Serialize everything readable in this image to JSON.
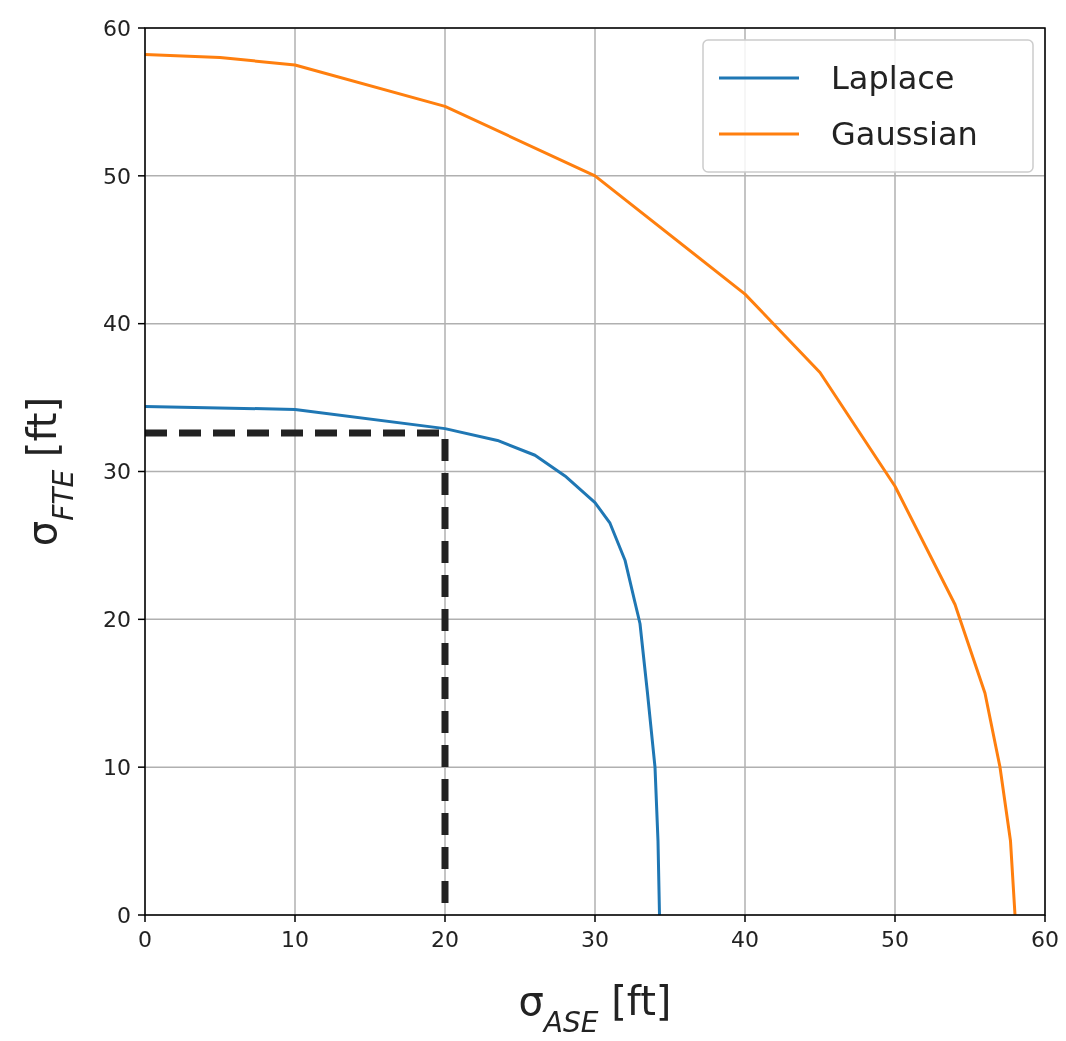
{
  "chart_data": {
    "type": "line",
    "xlabel": "σ$_{ASE}$ [ft]",
    "ylabel": "σ$_{FTE}$ [ft]",
    "xlim": [
      0,
      60
    ],
    "ylim": [
      0,
      60
    ],
    "xticks": [
      0,
      10,
      20,
      30,
      40,
      50,
      60
    ],
    "yticks": [
      0,
      10,
      20,
      30,
      40,
      50,
      60
    ],
    "grid": true,
    "legend": "top right",
    "line_style": "solid",
    "marker": "none",
    "series": [
      {
        "name": "Laplace",
        "color": "#1f77b4",
        "x": [
          0,
          10,
          20,
          23.5,
          26,
          28,
          30,
          31,
          32,
          33,
          33.5,
          34,
          34.2,
          34.3
        ],
        "values": [
          34.4,
          34.2,
          32.9,
          32.1,
          31.1,
          29.7,
          27.9,
          26.5,
          24,
          19.7,
          15,
          10,
          5,
          0
        ]
      },
      {
        "name": "Gaussian",
        "color": "#ff7f0e",
        "x": [
          0,
          5,
          10,
          20,
          30,
          40,
          45,
          50,
          54,
          56,
          57,
          57.7,
          58
        ],
        "values": [
          58.2,
          58,
          57.5,
          54.7,
          50,
          42,
          36.7,
          29,
          21,
          15,
          10,
          5,
          0
        ]
      },
      {
        "color": "#222222",
        "line_style": "dashed",
        "x": [
          0,
          20,
          20
        ],
        "values": [
          32.6,
          32.6,
          0
        ]
      }
    ]
  }
}
